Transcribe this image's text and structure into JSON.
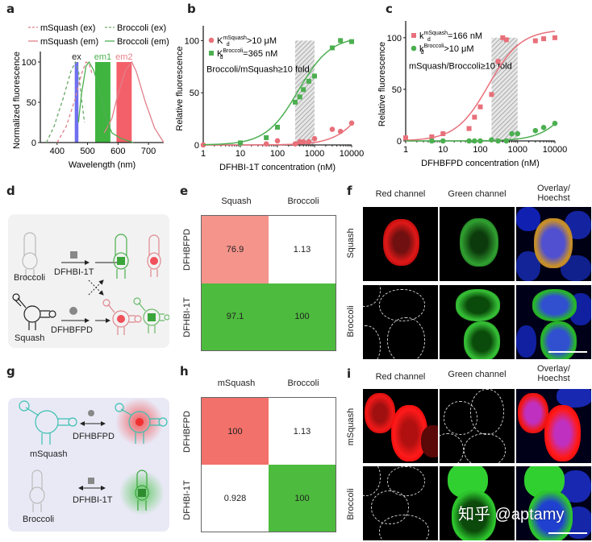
{
  "panel_letters": {
    "a": "a",
    "b": "b",
    "c": "c",
    "d": "d",
    "e": "e",
    "f": "f",
    "g": "g",
    "h": "h",
    "i": "i"
  },
  "chart_data": [
    {
      "panel": "a",
      "type": "line",
      "xlabel": "Wavelength (nm)",
      "ylabel": "Normalized fluorescence",
      "xlim": [
        345,
        750
      ],
      "ylim": [
        0,
        105
      ],
      "xticks": [
        400,
        500,
        600,
        700
      ],
      "yticks": [
        0,
        50,
        100
      ],
      "legend_position": "top",
      "bands": [
        {
          "label": "ex",
          "range": [
            458,
            470
          ],
          "color": "#6f6ff0",
          "label_color": "#222222"
        },
        {
          "label": "em1",
          "range": [
            525,
            575
          ],
          "color": "#3fb53f",
          "label_color": "#4caf50"
        },
        {
          "label": "em2",
          "range": [
            595,
            645
          ],
          "color": "#f4606a",
          "label_color": "#e8808a"
        }
      ],
      "series": [
        {
          "name": "mSquash (ex)",
          "style": "dashed",
          "color": "#e0808a",
          "x": [
            400,
            430,
            460,
            480,
            495,
            505,
            515
          ],
          "y": [
            0,
            20,
            55,
            85,
            100,
            98,
            85
          ]
        },
        {
          "name": "Broccoli (ex)",
          "style": "dashed",
          "color": "#6aa86a",
          "x": [
            365,
            390,
            420,
            445,
            460,
            470,
            480,
            490
          ],
          "y": [
            0,
            20,
            55,
            88,
            100,
            90,
            55,
            25
          ]
        },
        {
          "name": "mSquash (em)",
          "style": "solid",
          "color": "#e0808a",
          "x": [
            555,
            580,
            600,
            625,
            645,
            660,
            690,
            720,
            750
          ],
          "y": [
            12,
            30,
            60,
            90,
            100,
            88,
            50,
            18,
            0
          ]
        },
        {
          "name": "Broccoli (em)",
          "style": "solid",
          "color": "#4caf50",
          "x": [
            470,
            480,
            495,
            505,
            520,
            540,
            560,
            580,
            610,
            650
          ],
          "y": [
            25,
            60,
            95,
            100,
            90,
            65,
            30,
            12,
            5,
            0
          ]
        }
      ]
    },
    {
      "panel": "b",
      "type": "scatter",
      "xscale": "log",
      "xlabel": "DFHBI-1T concentration (nM)",
      "ylabel": "Relative fluorescence",
      "xlim": [
        1,
        10000
      ],
      "ylim": [
        0,
        108
      ],
      "xticks": [
        1,
        10,
        100,
        1000,
        10000
      ],
      "xtick_labels": [
        "1",
        "10",
        "100",
        "1000",
        "10000"
      ],
      "yticks": [
        0,
        50,
        100
      ],
      "shaded_range": [
        300,
        1000
      ],
      "annotation": "Broccoli/mSquash≥10 fold",
      "legend_position": "top-left",
      "series": [
        {
          "name_main": "K",
          "name_sub": "d",
          "name_sup": "mSquash",
          "name_rest": ">10 μM",
          "marker": "circle",
          "color": "#e8707a",
          "x": [
            1,
            50,
            100,
            300,
            400,
            500,
            700,
            1000,
            3000,
            5000,
            10000
          ],
          "y": [
            0,
            1,
            4,
            1,
            3,
            3,
            3,
            6,
            15,
            13,
            21
          ],
          "fit_kd": 40000,
          "fit_max": 100
        },
        {
          "name_main": "K",
          "name_sub": "d",
          "name_sup": "Broccoli",
          "name_rest": "=365 nM",
          "marker": "square",
          "color": "#4caf50",
          "x": [
            10,
            50,
            100,
            300,
            400,
            500,
            700,
            1000,
            3000,
            5000,
            10000
          ],
          "y": [
            2,
            7,
            17,
            41,
            46,
            53,
            61,
            66,
            93,
            100,
            99
          ],
          "fit_kd": 365,
          "fit_max": 104
        }
      ]
    },
    {
      "panel": "c",
      "type": "scatter",
      "xscale": "log",
      "xlabel": "DFHBFPD concentration (nM)",
      "ylabel": "Relative fluorescence",
      "xlim": [
        1,
        10000
      ],
      "ylim": [
        0,
        110
      ],
      "xticks": [
        1,
        10,
        100,
        1000,
        10000
      ],
      "xtick_labels": [
        "1",
        "10",
        "100",
        "1000",
        "10000"
      ],
      "yticks": [
        0,
        50,
        100
      ],
      "shaded_range": [
        200,
        1000
      ],
      "annotation": "mSquash/Broccoli≥10 fold",
      "legend_position": "top-left",
      "series": [
        {
          "name_main": "k",
          "name_sub": "d",
          "name_sup": "mSquash",
          "name_rest": "=166 nM",
          "marker": "square",
          "color": "#e8707a",
          "x": [
            1,
            5,
            10,
            50,
            70,
            100,
            200,
            300,
            400,
            500,
            3000,
            5000,
            10000
          ],
          "y": [
            3,
            4,
            7,
            12,
            23,
            33,
            45,
            77,
            100,
            98,
            97,
            99,
            100
          ],
          "fit_kd": 166,
          "fit_max": 108
        },
        {
          "name_main": "k",
          "name_sub": "d",
          "name_sup": "Broccoli",
          "name_rest": ">10 μM",
          "marker": "circle",
          "color": "#4caf50",
          "x": [
            5,
            10,
            50,
            70,
            100,
            200,
            300,
            500,
            700,
            1000,
            3000,
            5000,
            10000
          ],
          "y": [
            0,
            0,
            0,
            0,
            0,
            1,
            0,
            0,
            7,
            7,
            10,
            13,
            17
          ],
          "fit_kd": 50000,
          "fit_max": 100
        }
      ]
    }
  ],
  "panel_d": {
    "broccoli": "Broccoli",
    "squash": "Squash",
    "ligand1": "DFHBI-1T",
    "ligand2": "DFHBFPD"
  },
  "panel_e": {
    "columns": [
      "Squash",
      "Broccoli"
    ],
    "rows": [
      "DFHBFPD",
      "DFHBI-1T"
    ],
    "values": [
      [
        "76.9",
        "1.13"
      ],
      [
        "97.1",
        "100"
      ]
    ],
    "colors": [
      [
        "#f4948b",
        "#ffffff"
      ],
      [
        "#4dbb3d",
        "#4dbb3d"
      ]
    ]
  },
  "panel_f": {
    "columns": [
      "Red channel",
      "Green channel",
      "Overlay/\nHoechst"
    ],
    "column3_line1": "Overlay/",
    "column3_line2": "Hoechst",
    "rows": [
      "Squash",
      "Broccoli"
    ]
  },
  "panel_g": {
    "msquash": "mSquash",
    "broccoli": "Broccoli",
    "ligand1": "DFHBFPD",
    "ligand2": "DFHBI-1T"
  },
  "panel_h": {
    "columns": [
      "mSquash",
      "Broccoli"
    ],
    "rows": [
      "DFHBFPD",
      "DFHBI-1T"
    ],
    "values": [
      [
        "100",
        "1.13"
      ],
      [
        "0.928",
        "100"
      ]
    ],
    "colors": [
      [
        "#f2716a",
        "#ffffff"
      ],
      [
        "#ffffff",
        "#4dbb3d"
      ]
    ]
  },
  "panel_i": {
    "column1": "Red channel",
    "column2": "Green channel",
    "column3_line1": "Overlay/",
    "column3_line2": "Hoechst",
    "rows": [
      "mSquash",
      "Broccoli"
    ]
  },
  "watermark": "知乎 @aptamy"
}
